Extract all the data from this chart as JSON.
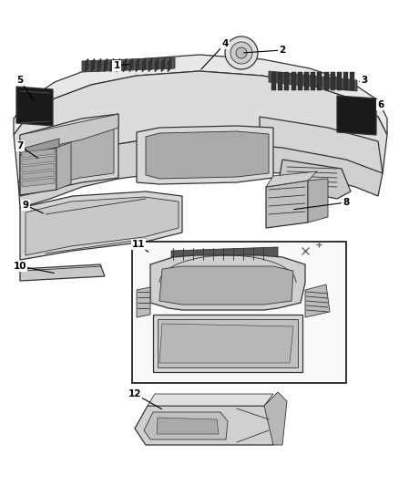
{
  "bg_color": "#ffffff",
  "fig_width": 4.38,
  "fig_height": 5.33,
  "dpi": 100,
  "line_color": "#333333",
  "fill_light": "#e8e8e8",
  "fill_mid": "#cccccc",
  "fill_dark": "#888888",
  "fill_black": "#1a1a1a",
  "fill_white": "#ffffff"
}
